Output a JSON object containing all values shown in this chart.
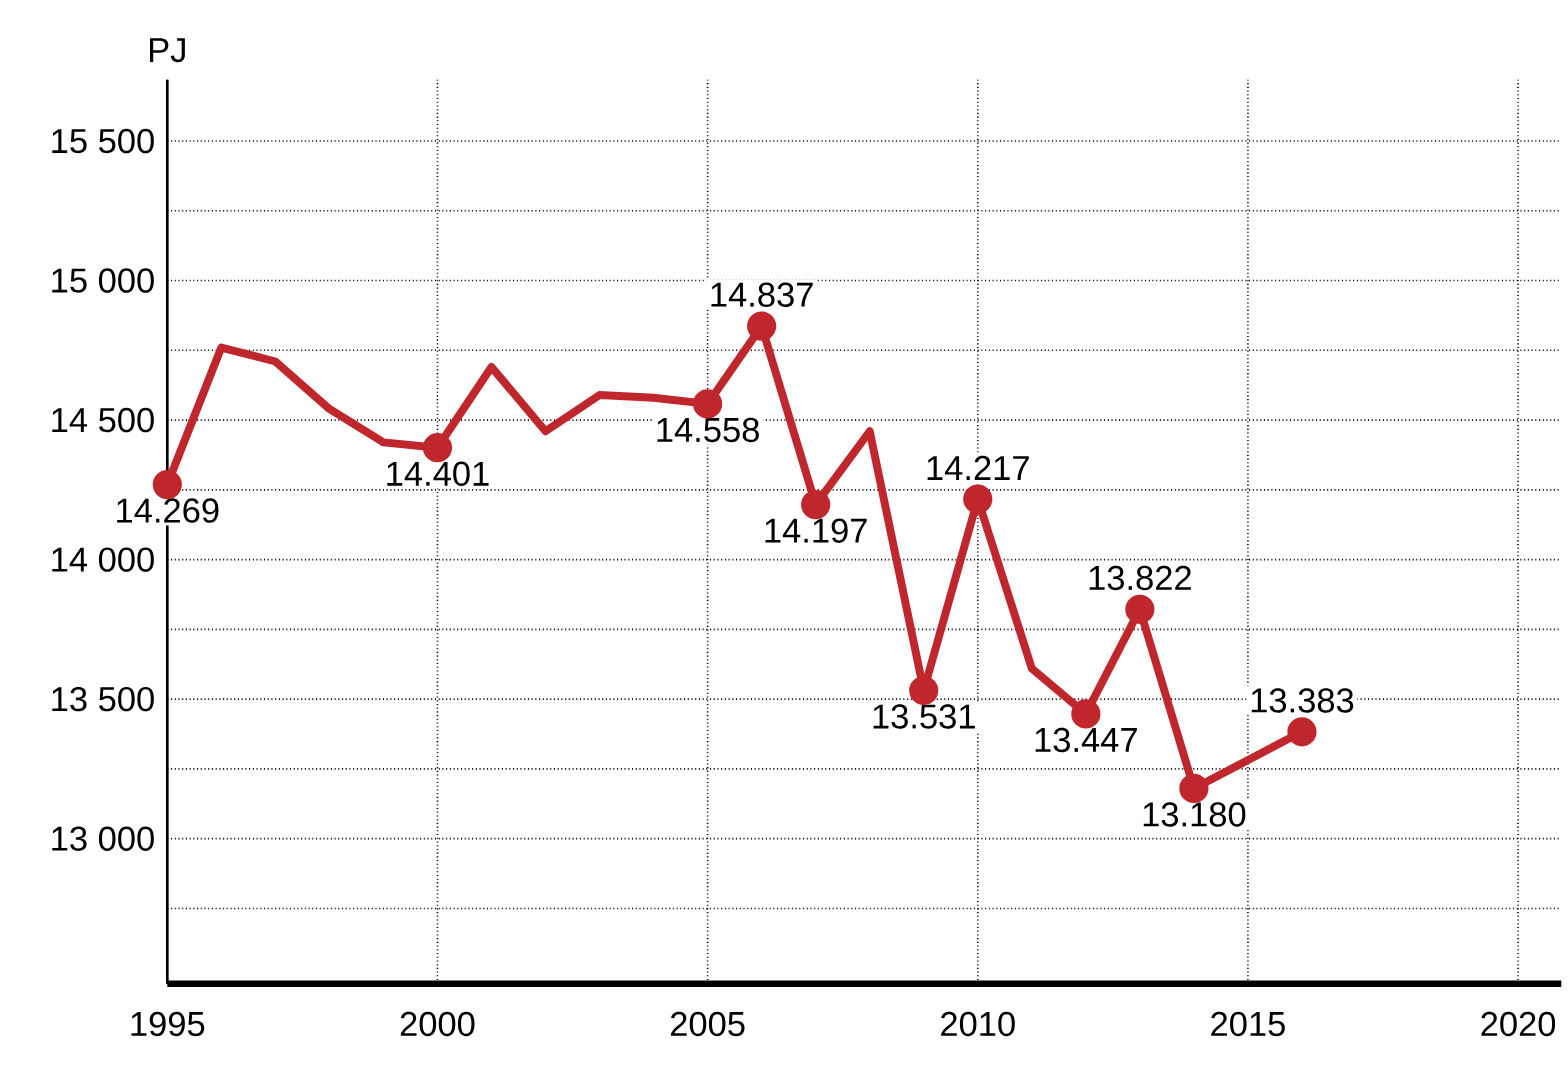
{
  "chart_data": {
    "type": "line",
    "ylabel": "PJ",
    "x": [
      1995,
      1996,
      1997,
      1998,
      1999,
      2000,
      2001,
      2002,
      2003,
      2004,
      2005,
      2006,
      2007,
      2008,
      2009,
      2010,
      2011,
      2012,
      2013,
      2014,
      2016
    ],
    "series": [
      {
        "color": "#c0272d",
        "values": [
          14269,
          14760,
          14710,
          14540,
          14420,
          14401,
          14690,
          14460,
          14590,
          14580,
          14558,
          14837,
          14197,
          14460,
          13531,
          14217,
          13610,
          13447,
          13822,
          13180,
          13383
        ],
        "value_labels": [
          "14.269",
          null,
          null,
          null,
          null,
          "14.401",
          null,
          null,
          null,
          null,
          "14.558",
          "14.837",
          "14.197",
          null,
          "13.531",
          "14.217",
          null,
          "13.447",
          "13.822",
          "13.180",
          "13.383"
        ]
      }
    ],
    "xlim": [
      1995,
      2020.8
    ],
    "ylim": [
      12480,
      15720
    ],
    "xticks": [
      1995,
      2000,
      2005,
      2010,
      2015,
      2020
    ],
    "yticks": [
      {
        "value": 12750,
        "label": null
      },
      {
        "value": 13000,
        "label": "13 000"
      },
      {
        "value": 13250,
        "label": null
      },
      {
        "value": 13500,
        "label": "13 500"
      },
      {
        "value": 13750,
        "label": null
      },
      {
        "value": 14000,
        "label": "14 000"
      },
      {
        "value": 14250,
        "label": null
      },
      {
        "value": 14500,
        "label": "14 500"
      },
      {
        "value": 14750,
        "label": null
      },
      {
        "value": 15000,
        "label": "15 000"
      },
      {
        "value": 15250,
        "label": null
      },
      {
        "value": 15500,
        "label": "15 500"
      }
    ],
    "grid": true,
    "marker": "circle",
    "line_style": "solid"
  }
}
